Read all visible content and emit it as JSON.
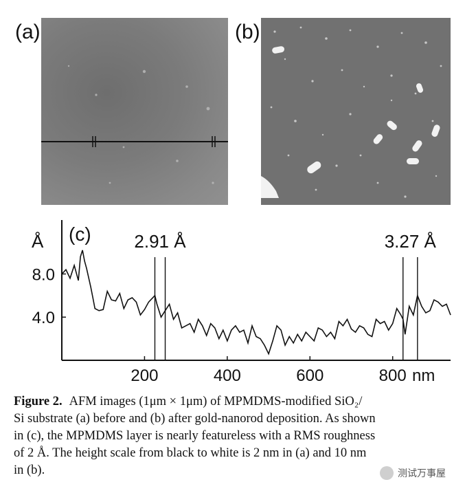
{
  "figure": {
    "panels": {
      "a_label": "(a)",
      "b_label": "(b)"
    },
    "caption": {
      "figure_label": "Figure 2.",
      "lines": [
        "AFM images (1μm × 1μm) of MPMDMS-modified SiO₂/",
        "Si substrate (a) before and (b) after gold-nanorod deposition. As shown",
        "in (c), the MPMDMS layer is nearly featureless with a RMS roughness",
        "of 2 Å. The height scale from black to white is 2 nm in (a) and 10 nm",
        "in (b)."
      ]
    },
    "watermark": "测试万事屋"
  },
  "chart_data": {
    "type": "line",
    "panel_label": "(c)",
    "ylabel": "Å",
    "xlabel": "nm",
    "xlim": [
      0,
      940
    ],
    "ylim": [
      0,
      13
    ],
    "xticks": [
      200,
      400,
      600,
      800
    ],
    "yticks": [
      4.0,
      8.0
    ],
    "ytick_labels": [
      "4.0",
      "8.0"
    ],
    "annotations": [
      {
        "text": "2.91 Å",
        "x_lines": [
          225,
          250
        ]
      },
      {
        "text": "3.27 Å",
        "x_lines": [
          825,
          860
        ]
      }
    ],
    "series": [
      {
        "x": [
          0,
          10,
          20,
          30,
          40,
          45,
          50,
          55,
          60,
          70,
          75,
          80,
          90,
          100,
          110,
          120,
          130,
          140,
          150,
          160,
          170,
          180,
          190,
          200,
          210,
          225,
          230,
          240,
          250,
          260,
          270,
          280,
          290,
          300,
          310,
          320,
          330,
          340,
          350,
          360,
          370,
          380,
          390,
          400,
          410,
          420,
          430,
          440,
          450,
          460,
          470,
          480,
          490,
          500,
          510,
          520,
          530,
          540,
          550,
          560,
          570,
          580,
          590,
          600,
          610,
          620,
          630,
          640,
          650,
          660,
          670,
          680,
          690,
          700,
          710,
          720,
          730,
          740,
          750,
          760,
          770,
          780,
          790,
          800,
          810,
          820,
          825,
          830,
          840,
          850,
          860,
          870,
          880,
          890,
          900,
          910,
          920,
          930,
          940
        ],
        "y": [
          8.0,
          8.4,
          7.6,
          8.8,
          7.4,
          9.6,
          10.2,
          9.2,
          8.5,
          6.8,
          5.8,
          4.8,
          4.6,
          4.7,
          6.4,
          5.6,
          5.5,
          6.2,
          4.8,
          5.6,
          5.8,
          5.4,
          4.2,
          4.7,
          5.4,
          6.0,
          5.2,
          4.0,
          4.6,
          5.2,
          3.8,
          4.4,
          3.0,
          3.2,
          3.4,
          2.6,
          3.8,
          3.2,
          2.3,
          3.4,
          3.0,
          2.0,
          2.8,
          1.8,
          2.8,
          3.2,
          2.6,
          2.8,
          1.6,
          3.2,
          2.2,
          2.0,
          1.4,
          0.6,
          1.8,
          3.2,
          2.8,
          1.4,
          2.2,
          1.6,
          2.4,
          1.8,
          2.6,
          2.2,
          1.8,
          3.0,
          2.8,
          2.2,
          2.6,
          2.0,
          3.6,
          3.2,
          3.8,
          2.9,
          2.6,
          3.2,
          3.0,
          2.4,
          2.2,
          3.8,
          3.4,
          3.6,
          2.8,
          3.4,
          4.8,
          4.2,
          3.8,
          2.4,
          5.0,
          4.2,
          6.0,
          5.0,
          4.4,
          4.6,
          5.6,
          5.4,
          5.0,
          5.2,
          4.2
        ]
      }
    ]
  }
}
